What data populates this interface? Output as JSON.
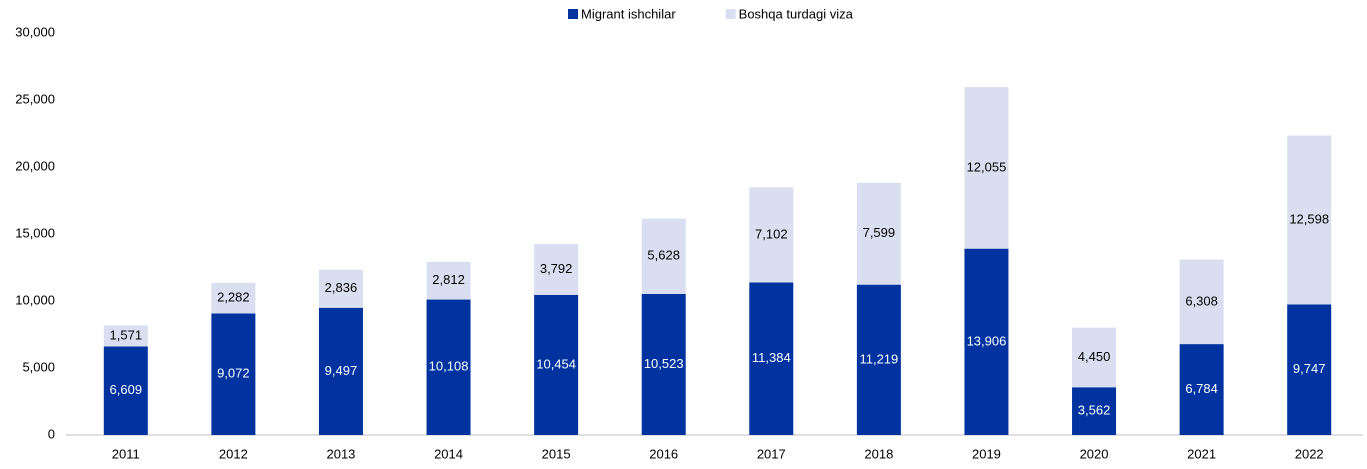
{
  "chart_data": {
    "type": "stacked_bar",
    "categories": [
      "2011",
      "2012",
      "2013",
      "2014",
      "2015",
      "2016",
      "2017",
      "2018",
      "2019",
      "2020",
      "2021",
      "2022"
    ],
    "series": [
      {
        "name": "Migrant ishchilar",
        "color": "#0033a0",
        "values": [
          6609,
          9072,
          9497,
          10108,
          10454,
          10523,
          11384,
          11219,
          13906,
          3562,
          6784,
          9747
        ],
        "value_labels": [
          "6,609",
          "9,072",
          "9,497",
          "10,108",
          "10,454",
          "10,523",
          "11,384",
          "11,219",
          "13,906",
          "3,562",
          "6,784",
          "9,747"
        ]
      },
      {
        "name": "Boshqa turdagi viza",
        "color": "#d9dff0",
        "values": [
          1571,
          2282,
          2836,
          2812,
          3792,
          5628,
          7102,
          7599,
          12055,
          4450,
          6308,
          12598
        ],
        "value_labels": [
          "1,571",
          "2,282",
          "2,836",
          "2,812",
          "3,792",
          "5,628",
          "7,102",
          "7,599",
          "12,055",
          "4,450",
          "6,308",
          "12,598"
        ]
      }
    ],
    "ylim": [
      0,
      30000
    ],
    "yticks": [
      0,
      {
        "value": 5000,
        "label": "5,000"
      },
      {
        "value": 10000,
        "label": "10,000"
      },
      {
        "value": 15000,
        "label": "15,000"
      },
      {
        "value": 20000,
        "label": "20,000"
      },
      {
        "value": 25000,
        "label": "25,000"
      },
      {
        "value": 30000,
        "label": "30,000"
      }
    ],
    "legend": "top"
  }
}
